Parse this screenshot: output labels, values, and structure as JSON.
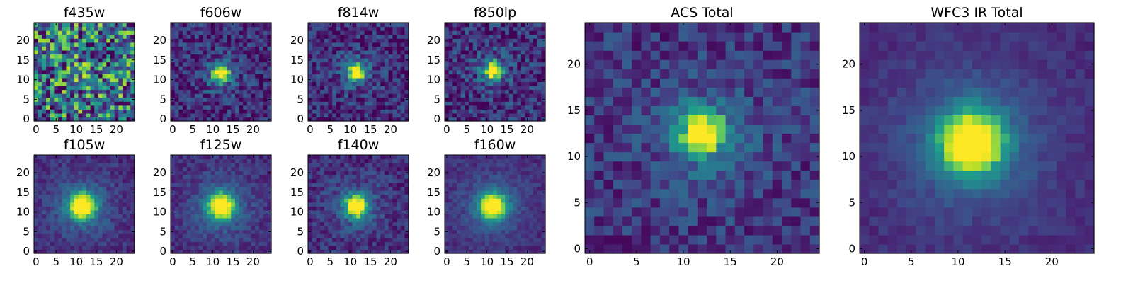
{
  "figure": {
    "colormap": "viridis",
    "colormap_stops": [
      "#440154",
      "#482777",
      "#3f4a8a",
      "#31688e",
      "#26838f",
      "#1f9d8a",
      "#6cce5a",
      "#b6de2b",
      "#fee825"
    ]
  },
  "chart_data": [
    {
      "type": "heatmap",
      "title": "f435w",
      "grid_size": 25,
      "xlim": [
        0,
        24
      ],
      "ylim": [
        0,
        24
      ],
      "xticks": [
        0,
        5,
        10,
        15,
        20
      ],
      "yticks": [
        0,
        5,
        10,
        15,
        20
      ],
      "peak": [
        12,
        12
      ],
      "peak_intensity": 0.12,
      "peak_width": 2.0,
      "noise": 0.45,
      "base": 0.4,
      "seed": 11
    },
    {
      "type": "heatmap",
      "title": "f606w",
      "grid_size": 25,
      "xlim": [
        0,
        24
      ],
      "ylim": [
        0,
        24
      ],
      "xticks": [
        0,
        5,
        10,
        15,
        20
      ],
      "yticks": [
        0,
        5,
        10,
        15,
        20
      ],
      "peak": [
        12,
        11.5
      ],
      "peak_intensity": 0.8,
      "peak_width": 1.5,
      "noise": 0.2,
      "base": 0.15,
      "seed": 23
    },
    {
      "type": "heatmap",
      "title": "f814w",
      "grid_size": 25,
      "xlim": [
        0,
        24
      ],
      "ylim": [
        0,
        24
      ],
      "xticks": [
        0,
        5,
        10,
        15,
        20
      ],
      "yticks": [
        0,
        5,
        10,
        15,
        20
      ],
      "peak": [
        11.5,
        12
      ],
      "peak_intensity": 0.85,
      "peak_width": 1.4,
      "noise": 0.2,
      "base": 0.15,
      "seed": 37
    },
    {
      "type": "heatmap",
      "title": "f850lp",
      "grid_size": 25,
      "xlim": [
        0,
        24
      ],
      "ylim": [
        0,
        24
      ],
      "xticks": [
        0,
        5,
        10,
        15,
        20
      ],
      "yticks": [
        0,
        5,
        10,
        15,
        20
      ],
      "peak": [
        11.5,
        12.5
      ],
      "peak_intensity": 0.85,
      "peak_width": 1.5,
      "noise": 0.22,
      "base": 0.15,
      "seed": 41
    },
    {
      "type": "heatmap",
      "title": "f105w",
      "grid_size": 25,
      "xlim": [
        0,
        24
      ],
      "ylim": [
        0,
        24
      ],
      "xticks": [
        0,
        5,
        10,
        15,
        20
      ],
      "yticks": [
        0,
        5,
        10,
        15,
        20
      ],
      "peak": [
        11.5,
        11.5
      ],
      "peak_intensity": 0.9,
      "peak_width": 2.3,
      "noise": 0.1,
      "base": 0.15,
      "seed": 53
    },
    {
      "type": "heatmap",
      "title": "f125w",
      "grid_size": 25,
      "xlim": [
        0,
        24
      ],
      "ylim": [
        0,
        24
      ],
      "xticks": [
        0,
        5,
        10,
        15,
        20
      ],
      "yticks": [
        0,
        5,
        10,
        15,
        20
      ],
      "peak": [
        12,
        11.5
      ],
      "peak_intensity": 0.9,
      "peak_width": 2.3,
      "noise": 0.1,
      "base": 0.15,
      "seed": 67
    },
    {
      "type": "heatmap",
      "title": "f140w",
      "grid_size": 25,
      "xlim": [
        0,
        24
      ],
      "ylim": [
        0,
        24
      ],
      "xticks": [
        0,
        5,
        10,
        15,
        20
      ],
      "yticks": [
        0,
        5,
        10,
        15,
        20
      ],
      "peak": [
        11.5,
        11.5
      ],
      "peak_intensity": 0.9,
      "peak_width": 1.9,
      "noise": 0.14,
      "base": 0.15,
      "seed": 71
    },
    {
      "type": "heatmap",
      "title": "f160w",
      "grid_size": 25,
      "xlim": [
        0,
        24
      ],
      "ylim": [
        0,
        24
      ],
      "xticks": [
        0,
        5,
        10,
        15,
        20
      ],
      "yticks": [
        0,
        5,
        10,
        15,
        20
      ],
      "peak": [
        11.5,
        11.5
      ],
      "peak_intensity": 0.9,
      "peak_width": 2.3,
      "noise": 0.08,
      "base": 0.15,
      "seed": 83
    },
    {
      "type": "heatmap",
      "title": "ACS Total",
      "grid_size": 25,
      "xlim": [
        0,
        24
      ],
      "ylim": [
        0,
        24
      ],
      "xticks": [
        0,
        5,
        10,
        15,
        20
      ],
      "yticks": [
        0,
        5,
        10,
        15,
        20
      ],
      "peak": [
        12,
        12.5
      ],
      "peak_intensity": 0.85,
      "peak_width": 1.6,
      "noise": 0.16,
      "base": 0.18,
      "seed": 97
    },
    {
      "type": "heatmap",
      "title": "WFC3 IR Total",
      "grid_size": 25,
      "xlim": [
        0,
        24
      ],
      "ylim": [
        0,
        24
      ],
      "xticks": [
        0,
        5,
        10,
        15,
        20
      ],
      "yticks": [
        0,
        5,
        10,
        15,
        20
      ],
      "peak": [
        11.5,
        11.5
      ],
      "peak_intensity": 0.92,
      "peak_width": 2.4,
      "noise": 0.06,
      "base": 0.14,
      "seed": 101
    }
  ]
}
